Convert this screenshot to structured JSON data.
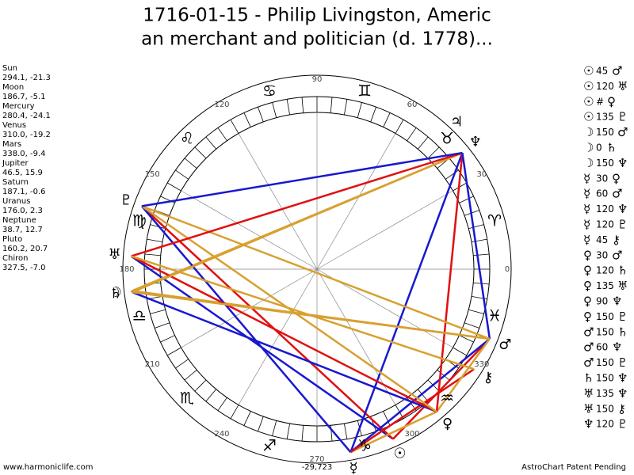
{
  "title": [
    "1716-01-15 - Philip Livingston, Americ",
    "an merchant and politician (d. 1778)..."
  ],
  "planets": [
    {
      "name": "Sun",
      "glyph": "☉",
      "coords": "294.1, -21.3"
    },
    {
      "name": "Moon",
      "glyph": "☽",
      "coords": "186.7, -5.1"
    },
    {
      "name": "Mercury",
      "glyph": "☿",
      "coords": "280.4, -24.1"
    },
    {
      "name": "Venus",
      "glyph": "♀",
      "coords": "310.0, -19.2"
    },
    {
      "name": "Mars",
      "glyph": "♂",
      "coords": "338.0, -9.4"
    },
    {
      "name": "Jupiter",
      "glyph": "♃",
      "coords": "46.5, 15.9"
    },
    {
      "name": "Saturn",
      "glyph": "♄",
      "coords": "187.1, -0.6"
    },
    {
      "name": "Uranus",
      "glyph": "♅",
      "coords": "176.0, 2.3"
    },
    {
      "name": "Neptune",
      "glyph": "♆",
      "coords": "38.7, 12.7"
    },
    {
      "name": "Pluto",
      "glyph": "♇",
      "coords": "160.2, 20.7"
    },
    {
      "name": "Chiron",
      "glyph": "⚷",
      "coords": "327.5, -7.0"
    }
  ],
  "aspects": [
    {
      "from": "☉",
      "angle": 45,
      "to": "♂"
    },
    {
      "from": "☉",
      "angle": 120,
      "to": "♅"
    },
    {
      "from": "☉",
      "angle": "#",
      "to": "♀"
    },
    {
      "from": "☉",
      "angle": 135,
      "to": "♇"
    },
    {
      "from": "☽",
      "angle": 150,
      "to": "♂"
    },
    {
      "from": "☽",
      "angle": 0,
      "to": "♄"
    },
    {
      "from": "☽",
      "angle": 150,
      "to": "♆"
    },
    {
      "from": "☿",
      "angle": 30,
      "to": "♀"
    },
    {
      "from": "☿",
      "angle": 60,
      "to": "♂"
    },
    {
      "from": "☿",
      "angle": 120,
      "to": "♆"
    },
    {
      "from": "☿",
      "angle": 120,
      "to": "♇"
    },
    {
      "from": "☿",
      "angle": 45,
      "to": "⚷"
    },
    {
      "from": "♀",
      "angle": 30,
      "to": "♂"
    },
    {
      "from": "♀",
      "angle": 120,
      "to": "♄"
    },
    {
      "from": "♀",
      "angle": 135,
      "to": "♅"
    },
    {
      "from": "♀",
      "angle": 90,
      "to": "♆"
    },
    {
      "from": "♀",
      "angle": 150,
      "to": "♇"
    },
    {
      "from": "♂",
      "angle": 150,
      "to": "♄"
    },
    {
      "from": "♂",
      "angle": 60,
      "to": "♆"
    },
    {
      "from": "♂",
      "angle": 150,
      "to": "♇"
    },
    {
      "from": "♄",
      "angle": 150,
      "to": "♆"
    },
    {
      "from": "♅",
      "angle": 135,
      "to": "♆"
    },
    {
      "from": "♅",
      "angle": 150,
      "to": "⚷"
    },
    {
      "from": "♆",
      "angle": 120,
      "to": "♇"
    }
  ],
  "aspect_colors": {
    "0": "#e01010",
    "45": "#e01010",
    "90": "#e01010",
    "135": "#e01010",
    "60": "#1818d0",
    "120": "#1818d0",
    "30": "#d8a030",
    "150": "#d8a030"
  },
  "signs": [
    "♈",
    "♉",
    "♊",
    "♋",
    "♌",
    "♍",
    "♎",
    "♏",
    "♐",
    "♑",
    "♒",
    "♓"
  ],
  "degree_labels": [
    0,
    30,
    60,
    90,
    120,
    150,
    180,
    210,
    240,
    270,
    300,
    330
  ],
  "bottom_value": "-29,723",
  "footer": {
    "left": "www.harmoniclife.com",
    "right": "AstroChart Patent Pending"
  }
}
